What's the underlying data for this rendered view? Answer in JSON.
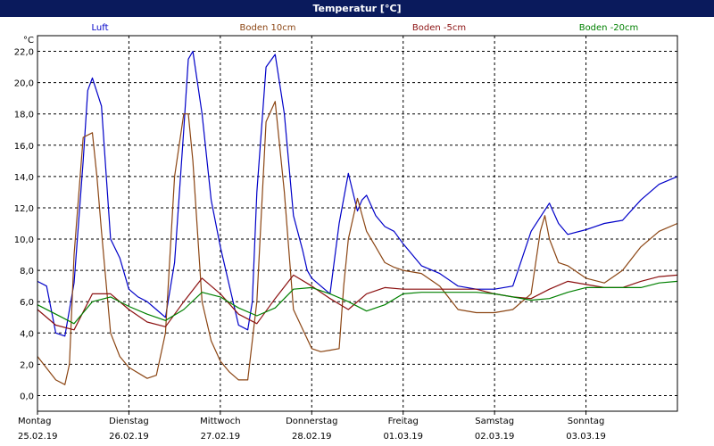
{
  "window": {
    "title": "Temperatur [°C]"
  },
  "chart_data": {
    "type": "line",
    "title": "Temperatur [°C]",
    "ylabel": "°C",
    "xlabel": "",
    "ylim": [
      -1,
      23
    ],
    "xlim": [
      0,
      7
    ],
    "y_ticks": [
      "0,0",
      "2,0",
      "4,0",
      "6,0",
      "8,0",
      "10,0",
      "12,0",
      "14,0",
      "16,0",
      "18,0",
      "20,0",
      "22,0"
    ],
    "x_ticks": [
      {
        "day": "Montag",
        "date": "25.02.19"
      },
      {
        "day": "Dienstag",
        "date": "26.02.19"
      },
      {
        "day": "Mittwoch",
        "date": "27.02.19"
      },
      {
        "day": "Donnerstag",
        "date": "28.02.19"
      },
      {
        "day": "Freitag",
        "date": "01.03.19"
      },
      {
        "day": "Samstag",
        "date": "02.03.19"
      },
      {
        "day": "Sonntag",
        "date": "03.03.19"
      }
    ],
    "grid": true,
    "legend_position": "top",
    "series": [
      {
        "name": "Luft",
        "color": "#0000c8",
        "x": [
          0,
          0.1,
          0.2,
          0.3,
          0.4,
          0.5,
          0.55,
          0.6,
          0.7,
          0.8,
          0.9,
          1.0,
          1.1,
          1.2,
          1.3,
          1.4,
          1.5,
          1.6,
          1.65,
          1.7,
          1.8,
          1.9,
          2.0,
          2.1,
          2.2,
          2.3,
          2.35,
          2.4,
          2.5,
          2.6,
          2.7,
          2.8,
          2.9,
          2.95,
          3.0,
          3.1,
          3.2,
          3.3,
          3.4,
          3.5,
          3.55,
          3.6,
          3.7,
          3.8,
          3.9,
          4.0,
          4.2,
          4.4,
          4.6,
          4.8,
          5.0,
          5.2,
          5.4,
          5.6,
          5.7,
          5.8,
          6.0,
          6.2,
          6.4,
          6.6,
          6.8,
          7.0
        ],
        "y": [
          7.3,
          7.0,
          4.0,
          3.8,
          7.2,
          15.0,
          19.5,
          20.3,
          18.5,
          10.0,
          8.8,
          6.8,
          6.3,
          6.0,
          5.5,
          5.0,
          8.5,
          17.0,
          21.5,
          22.0,
          18.0,
          12.5,
          9.5,
          7.0,
          4.5,
          4.2,
          6.0,
          13.0,
          21.0,
          21.8,
          18.0,
          11.5,
          9.3,
          8.0,
          7.5,
          7.0,
          6.5,
          11.0,
          14.2,
          11.8,
          12.5,
          12.8,
          11.5,
          10.8,
          10.5,
          9.7,
          8.3,
          7.8,
          7.0,
          6.8,
          6.8,
          7.0,
          10.5,
          12.3,
          11.0,
          10.3,
          10.6,
          11.0,
          11.2,
          12.5,
          13.5,
          14.0
        ]
      },
      {
        "name": "Boden 10cm",
        "color": "#8b4513",
        "x": [
          0,
          0.2,
          0.3,
          0.35,
          0.4,
          0.5,
          0.6,
          0.65,
          0.7,
          0.8,
          0.9,
          1.0,
          1.2,
          1.3,
          1.4,
          1.5,
          1.6,
          1.65,
          1.7,
          1.8,
          1.9,
          2.0,
          2.1,
          2.2,
          2.3,
          2.4,
          2.5,
          2.6,
          2.7,
          2.8,
          3.0,
          3.1,
          3.2,
          3.3,
          3.35,
          3.4,
          3.5,
          3.6,
          3.7,
          3.8,
          3.9,
          4.0,
          4.2,
          4.4,
          4.6,
          4.8,
          5.0,
          5.2,
          5.4,
          5.5,
          5.55,
          5.6,
          5.7,
          5.8,
          6.0,
          6.2,
          6.4,
          6.6,
          6.8,
          7.0
        ],
        "y": [
          2.5,
          1.0,
          0.7,
          2.0,
          9.0,
          16.5,
          16.8,
          14.0,
          10.5,
          4.0,
          2.5,
          1.8,
          1.1,
          1.3,
          4.0,
          14.0,
          18.0,
          18.0,
          15.0,
          6.0,
          3.5,
          2.2,
          1.5,
          1.0,
          1.0,
          6.0,
          17.5,
          18.8,
          13.0,
          5.5,
          3.0,
          2.8,
          2.9,
          3.0,
          7.0,
          10.0,
          12.6,
          10.5,
          9.5,
          8.5,
          8.2,
          8.0,
          7.8,
          7.0,
          5.5,
          5.3,
          5.3,
          5.5,
          6.5,
          10.5,
          11.5,
          10.0,
          8.5,
          8.3,
          7.5,
          7.2,
          8.0,
          9.5,
          10.5,
          11.0
        ]
      },
      {
        "name": "Boden -5cm",
        "color": "#8b1010",
        "x": [
          0,
          0.2,
          0.4,
          0.6,
          0.8,
          1.0,
          1.2,
          1.4,
          1.6,
          1.8,
          2.0,
          2.2,
          2.4,
          2.6,
          2.8,
          3.0,
          3.2,
          3.4,
          3.6,
          3.8,
          4.0,
          4.2,
          4.4,
          4.6,
          4.8,
          5.0,
          5.2,
          5.4,
          5.6,
          5.8,
          6.0,
          6.2,
          6.4,
          6.6,
          6.8,
          7.0
        ],
        "y": [
          5.5,
          4.5,
          4.2,
          6.5,
          6.5,
          5.5,
          4.7,
          4.4,
          6.0,
          7.5,
          6.5,
          5.2,
          4.6,
          6.2,
          7.7,
          7.0,
          6.2,
          5.5,
          6.5,
          6.9,
          6.8,
          6.8,
          6.8,
          6.8,
          6.8,
          6.5,
          6.3,
          6.2,
          6.8,
          7.3,
          7.1,
          6.9,
          6.9,
          7.3,
          7.6,
          7.7
        ]
      },
      {
        "name": "Boden -20cm",
        "color": "#008000",
        "x": [
          0,
          0.2,
          0.4,
          0.6,
          0.8,
          1.0,
          1.2,
          1.4,
          1.6,
          1.8,
          2.0,
          2.2,
          2.4,
          2.6,
          2.8,
          3.0,
          3.2,
          3.4,
          3.6,
          3.8,
          4.0,
          4.2,
          4.4,
          4.6,
          4.8,
          5.0,
          5.2,
          5.4,
          5.6,
          5.8,
          6.0,
          6.2,
          6.4,
          6.6,
          6.8,
          7.0
        ],
        "y": [
          5.8,
          5.2,
          4.6,
          6.0,
          6.3,
          5.7,
          5.2,
          4.8,
          5.5,
          6.6,
          6.3,
          5.6,
          5.1,
          5.6,
          6.8,
          6.9,
          6.5,
          6.0,
          5.4,
          5.8,
          6.5,
          6.6,
          6.6,
          6.6,
          6.6,
          6.5,
          6.3,
          6.1,
          6.2,
          6.6,
          6.9,
          6.9,
          6.9,
          6.9,
          7.2,
          7.3
        ]
      }
    ]
  }
}
